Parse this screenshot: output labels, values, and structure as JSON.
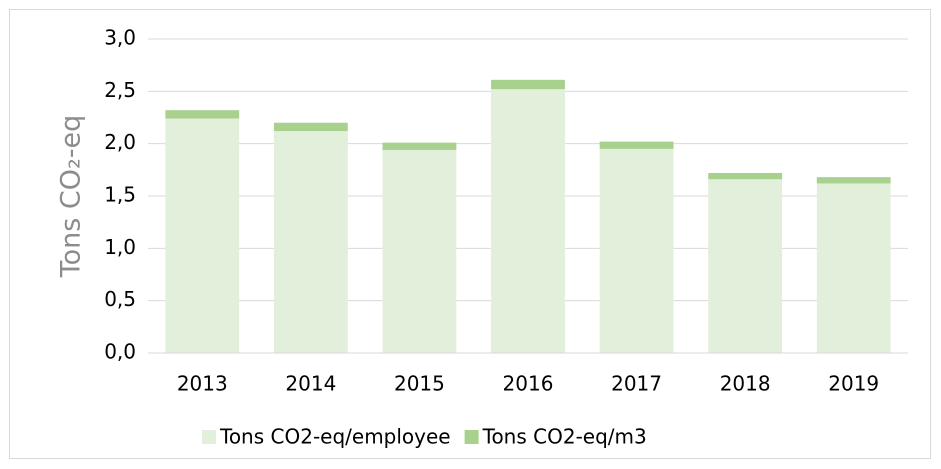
{
  "chart_data": {
    "type": "stacked_bar",
    "y_label": "Tons CO₂-eq",
    "categories": [
      "2013",
      "2014",
      "2015",
      "2016",
      "2017",
      "2018",
      "2019"
    ],
    "series": [
      {
        "name": "Tons CO2-eq/employee",
        "color": "#e2efda",
        "values": [
          2.24,
          2.12,
          1.94,
          2.52,
          1.95,
          1.66,
          1.62
        ]
      },
      {
        "name": "Tons CO2-eq/m3",
        "color": "#a9d18e",
        "values": [
          0.08,
          0.08,
          0.07,
          0.09,
          0.07,
          0.06,
          0.06
        ]
      }
    ],
    "ylim": [
      0,
      3
    ],
    "yticks": [
      {
        "value": 0,
        "label": "0,0"
      },
      {
        "value": 0.5,
        "label": "0,5"
      },
      {
        "value": 1,
        "label": "1,0"
      },
      {
        "value": 1.5,
        "label": "1,5"
      },
      {
        "value": 2,
        "label": "2,0"
      },
      {
        "value": 2.5,
        "label": "2,5"
      },
      {
        "value": 3,
        "label": "3,0"
      }
    ],
    "grid": true,
    "legend": "bottom"
  }
}
